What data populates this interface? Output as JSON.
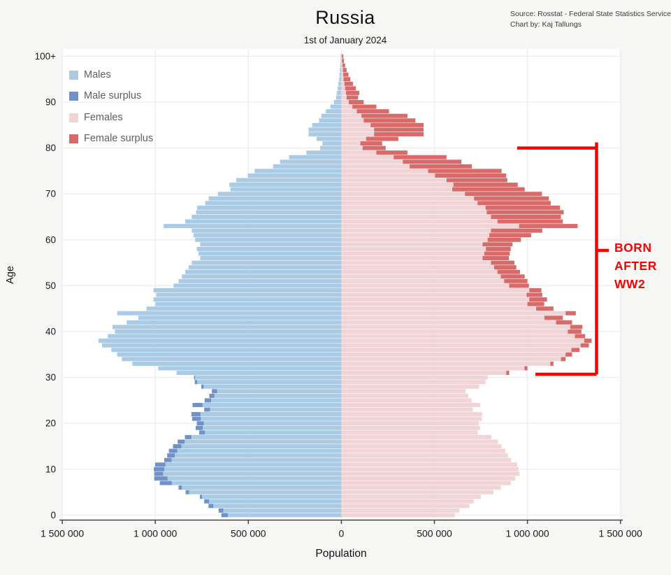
{
  "title": "Russia",
  "subtitle": "1st of January 2024",
  "source": {
    "line1": "Source: Rosstat - Federal State Statistics Service",
    "line2": "Chart by: Kaj Tallungs"
  },
  "legend": {
    "items": [
      {
        "label": "Males",
        "color": "#aacbe5"
      },
      {
        "label": "Male surplus",
        "color": "#7191c9"
      },
      {
        "label": "Females",
        "color": "#f1d4d5"
      },
      {
        "label": "Female surplus",
        "color": "#d96a6a"
      }
    ]
  },
  "annotation": {
    "lines": [
      "BORN",
      "AFTER",
      "WW2"
    ],
    "color": "#fb0000",
    "age_from": 31,
    "age_to": 80
  },
  "colors": {
    "page_background": "#f6f6f5",
    "plot_background": "#ffffff",
    "gridline": "#ededed",
    "axis": "#444444",
    "tick_text": "#1a1a1a",
    "males": "#aacbe5",
    "male_surplus": "#7191c9",
    "females": "#f1d4d5",
    "female_surplus": "#d96a6a",
    "bracket": "#fb0000"
  },
  "chart_data": {
    "type": "bar",
    "subtype": "population-pyramid",
    "title": "Russia",
    "subtitle": "1st of January 2024",
    "xlabel": "Population",
    "ylabel": "Age",
    "xlim": [
      -1500000,
      1500000
    ],
    "grid": true,
    "legend_position": "top-left",
    "x_tick_labels": [
      "1 500 000",
      "1 000 000",
      "500 000",
      "0",
      "500 000",
      "1 000 000",
      "1 500 000"
    ],
    "x_tick_values": [
      -1500000,
      -1000000,
      -500000,
      0,
      500000,
      1000000,
      1500000
    ],
    "y_tick_labels": [
      "0",
      "10",
      "20",
      "30",
      "40",
      "50",
      "60",
      "70",
      "80",
      "90",
      "100+"
    ],
    "y_tick_values": [
      0,
      10,
      20,
      30,
      40,
      50,
      60,
      70,
      80,
      90,
      100
    ],
    "ages": "single years 0 through 100+",
    "series": [
      {
        "name": "Males",
        "values": [
          645000,
          660000,
          714000,
          737000,
          760000,
          837000,
          875000,
          976000,
          1006000,
          1006000,
          1008000,
          1001000,
          952000,
          936000,
          927000,
          905000,
          880000,
          841000,
          764000,
          783000,
          777000,
          802000,
          806000,
          737000,
          800000,
          735000,
          710000,
          696000,
          753000,
          788000,
          792000,
          886000,
          984000,
          1123000,
          1180000,
          1205000,
          1236000,
          1286000,
          1305000,
          1255000,
          1217000,
          1230000,
          1154000,
          1091000,
          1205000,
          1047000,
          1000000,
          1010000,
          995000,
          1010000,
          902000,
          875000,
          857000,
          839000,
          821000,
          804000,
          759000,
          768000,
          777000,
          759000,
          786000,
          795000,
          804000,
          955000,
          839000,
          804000,
          781000,
          775000,
          732000,
          713000,
          664000,
          596000,
          602000,
          565000,
          503000,
          466000,
          367000,
          330000,
          281000,
          188000,
          114000,
          102000,
          133000,
          176000,
          176000,
          157000,
          120000,
          108000,
          83000,
          59000,
          40000,
          28000,
          25000,
          20000,
          16000,
          12000,
          10000,
          8000,
          6000,
          4000,
          3000
        ]
      },
      {
        "name": "Females",
        "values": [
          610000,
          634000,
          688000,
          711000,
          749000,
          818000,
          857000,
          911000,
          934000,
          958000,
          952000,
          945000,
          912000,
          895000,
          882000,
          860000,
          842000,
          806000,
          733000,
          745000,
          739000,
          755000,
          757000,
          706000,
          746000,
          700000,
          682000,
          668000,
          740000,
          775000,
          786000,
          902000,
          1000000,
          1140000,
          1205000,
          1240000,
          1280000,
          1330000,
          1345000,
          1310000,
          1290000,
          1295000,
          1240000,
          1190000,
          1260000,
          1140000,
          1090000,
          1105000,
          1080000,
          1075000,
          1008000,
          1000000,
          985000,
          960000,
          940000,
          930000,
          900000,
          905000,
          910000,
          920000,
          965000,
          1020000,
          1080000,
          1270000,
          1190000,
          1180000,
          1195000,
          1175000,
          1125000,
          1115000,
          1078000,
          985000,
          948000,
          892000,
          886000,
          861000,
          701000,
          645000,
          565000,
          355000,
          238000,
          219000,
          306000,
          442000,
          442000,
          442000,
          398000,
          355000,
          256000,
          188000,
          120000,
          90000,
          96000,
          78000,
          62000,
          48000,
          38000,
          28000,
          20000,
          14000,
          10000
        ]
      }
    ]
  }
}
